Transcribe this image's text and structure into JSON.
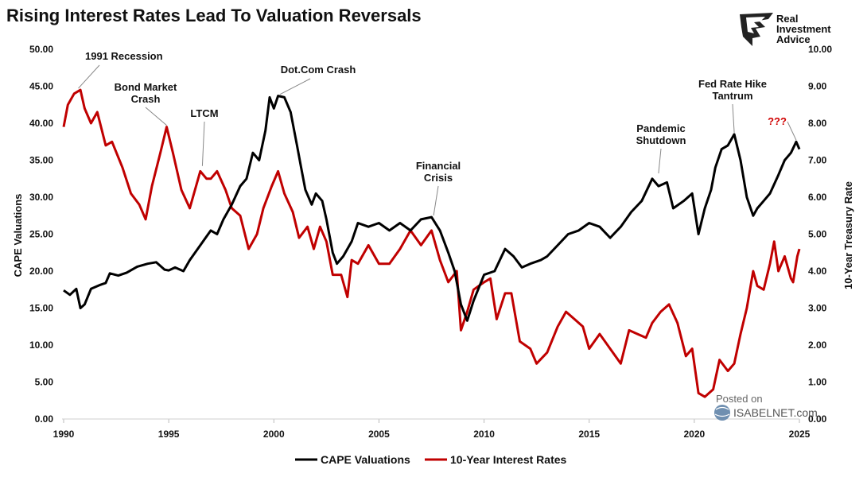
{
  "brand": {
    "line1": "Real",
    "line2": "Investment",
    "line3": "Advice"
  },
  "watermark": {
    "line1": "Posted on",
    "line2": "ISABELNET.com"
  },
  "colors": {
    "cape": "#000000",
    "rates": "#c00000",
    "question": "#d00000"
  },
  "chart_data": {
    "type": "line",
    "title": "Rising Interest Rates Lead To Valuation Reversals",
    "ylabel": "CAPE Valuations",
    "y2label": "10-Year Treasury Rate",
    "xlim": [
      1990,
      2025
    ],
    "ylim": [
      0,
      50
    ],
    "y2lim": [
      0,
      10
    ],
    "x_ticks": [
      "1990",
      "1995",
      "2000",
      "2005",
      "2010",
      "2015",
      "2020",
      "2025"
    ],
    "y_ticks": [
      "0.00",
      "5.00",
      "10.00",
      "15.00",
      "20.00",
      "25.00",
      "30.00",
      "35.00",
      "40.00",
      "45.00",
      "50.00"
    ],
    "y2_ticks": [
      "0.00",
      "1.00",
      "2.00",
      "3.00",
      "4.00",
      "5.00",
      "6.00",
      "7.00",
      "8.00",
      "9.00",
      "10.00"
    ],
    "legend": [
      "CAPE Valuations",
      "10-Year Interest Rates"
    ],
    "legend_position": "bottom-center",
    "series": [
      {
        "name": "CAPE Valuations",
        "axis": "left",
        "points": [
          [
            1990.0,
            17.4
          ],
          [
            1990.3,
            16.8
          ],
          [
            1990.6,
            17.6
          ],
          [
            1990.8,
            15.0
          ],
          [
            1991.0,
            15.5
          ],
          [
            1991.3,
            17.6
          ],
          [
            1991.7,
            18.1
          ],
          [
            1992.0,
            18.4
          ],
          [
            1992.2,
            19.7
          ],
          [
            1992.6,
            19.4
          ],
          [
            1993.0,
            19.8
          ],
          [
            1993.5,
            20.6
          ],
          [
            1994.0,
            21.0
          ],
          [
            1994.4,
            21.2
          ],
          [
            1994.8,
            20.2
          ],
          [
            1995.0,
            20.1
          ],
          [
            1995.3,
            20.5
          ],
          [
            1995.7,
            20.0
          ],
          [
            1996.0,
            21.5
          ],
          [
            1996.5,
            23.5
          ],
          [
            1997.0,
            25.5
          ],
          [
            1997.3,
            25.0
          ],
          [
            1997.6,
            27.0
          ],
          [
            1998.0,
            29.0
          ],
          [
            1998.4,
            31.5
          ],
          [
            1998.7,
            32.5
          ],
          [
            1999.0,
            36.0
          ],
          [
            1999.3,
            35.0
          ],
          [
            1999.6,
            39.0
          ],
          [
            1999.8,
            43.5
          ],
          [
            2000.0,
            42.0
          ],
          [
            2000.2,
            43.7
          ],
          [
            2000.5,
            43.5
          ],
          [
            2000.8,
            41.5
          ],
          [
            2001.1,
            37.0
          ],
          [
            2001.3,
            34.0
          ],
          [
            2001.5,
            31.0
          ],
          [
            2001.8,
            29.0
          ],
          [
            2002.0,
            30.5
          ],
          [
            2002.3,
            29.5
          ],
          [
            2002.5,
            27.0
          ],
          [
            2002.8,
            22.5
          ],
          [
            2003.0,
            21.0
          ],
          [
            2003.3,
            22.0
          ],
          [
            2003.7,
            24.0
          ],
          [
            2004.0,
            26.5
          ],
          [
            2004.5,
            26.0
          ],
          [
            2005.0,
            26.5
          ],
          [
            2005.5,
            25.5
          ],
          [
            2006.0,
            26.5
          ],
          [
            2006.5,
            25.5
          ],
          [
            2007.0,
            27.0
          ],
          [
            2007.5,
            27.3
          ],
          [
            2007.9,
            25.5
          ],
          [
            2008.3,
            22.5
          ],
          [
            2008.6,
            20.0
          ],
          [
            2008.9,
            15.5
          ],
          [
            2009.2,
            13.3
          ],
          [
            2009.5,
            16.0
          ],
          [
            2010.0,
            19.5
          ],
          [
            2010.5,
            20.0
          ],
          [
            2011.0,
            23.0
          ],
          [
            2011.4,
            22.0
          ],
          [
            2011.8,
            20.5
          ],
          [
            2012.2,
            21.0
          ],
          [
            2012.7,
            21.5
          ],
          [
            2013.0,
            22.0
          ],
          [
            2013.5,
            23.5
          ],
          [
            2014.0,
            25.0
          ],
          [
            2014.5,
            25.5
          ],
          [
            2015.0,
            26.5
          ],
          [
            2015.5,
            26.0
          ],
          [
            2016.0,
            24.5
          ],
          [
            2016.5,
            26.0
          ],
          [
            2017.0,
            28.0
          ],
          [
            2017.5,
            29.5
          ],
          [
            2018.0,
            32.5
          ],
          [
            2018.3,
            31.5
          ],
          [
            2018.7,
            32.0
          ],
          [
            2019.0,
            28.5
          ],
          [
            2019.5,
            29.5
          ],
          [
            2019.9,
            30.5
          ],
          [
            2020.2,
            25.0
          ],
          [
            2020.5,
            28.5
          ],
          [
            2020.8,
            31.0
          ],
          [
            2021.0,
            34.0
          ],
          [
            2021.3,
            36.5
          ],
          [
            2021.6,
            37.0
          ],
          [
            2021.9,
            38.5
          ],
          [
            2022.2,
            35.0
          ],
          [
            2022.5,
            30.0
          ],
          [
            2022.8,
            27.5
          ],
          [
            2023.0,
            28.5
          ],
          [
            2023.3,
            29.5
          ],
          [
            2023.6,
            30.5
          ],
          [
            2024.0,
            33.0
          ],
          [
            2024.3,
            35.0
          ],
          [
            2024.6,
            36.0
          ],
          [
            2024.85,
            37.5
          ],
          [
            2025.0,
            36.5
          ]
        ]
      },
      {
        "name": "10-Year Interest Rates",
        "axis": "right",
        "points": [
          [
            1990.0,
            7.9
          ],
          [
            1990.2,
            8.5
          ],
          [
            1990.5,
            8.8
          ],
          [
            1990.8,
            8.9
          ],
          [
            1991.0,
            8.4
          ],
          [
            1991.3,
            8.0
          ],
          [
            1991.6,
            8.3
          ],
          [
            1992.0,
            7.4
          ],
          [
            1992.3,
            7.5
          ],
          [
            1992.8,
            6.8
          ],
          [
            1993.2,
            6.1
          ],
          [
            1993.6,
            5.8
          ],
          [
            1993.9,
            5.4
          ],
          [
            1994.2,
            6.3
          ],
          [
            1994.6,
            7.2
          ],
          [
            1994.9,
            7.9
          ],
          [
            1995.2,
            7.2
          ],
          [
            1995.6,
            6.2
          ],
          [
            1996.0,
            5.7
          ],
          [
            1996.5,
            6.7
          ],
          [
            1996.8,
            6.5
          ],
          [
            1997.0,
            6.5
          ],
          [
            1997.3,
            6.7
          ],
          [
            1997.7,
            6.2
          ],
          [
            1998.0,
            5.7
          ],
          [
            1998.4,
            5.5
          ],
          [
            1998.8,
            4.6
          ],
          [
            1999.2,
            5.0
          ],
          [
            1999.5,
            5.7
          ],
          [
            1999.9,
            6.3
          ],
          [
            2000.2,
            6.7
          ],
          [
            2000.5,
            6.1
          ],
          [
            2000.9,
            5.6
          ],
          [
            2001.2,
            4.9
          ],
          [
            2001.6,
            5.2
          ],
          [
            2001.9,
            4.6
          ],
          [
            2002.2,
            5.2
          ],
          [
            2002.5,
            4.8
          ],
          [
            2002.8,
            3.9
          ],
          [
            2003.2,
            3.9
          ],
          [
            2003.5,
            3.3
          ],
          [
            2003.7,
            4.3
          ],
          [
            2004.0,
            4.2
          ],
          [
            2004.5,
            4.7
          ],
          [
            2005.0,
            4.2
          ],
          [
            2005.5,
            4.2
          ],
          [
            2006.0,
            4.6
          ],
          [
            2006.5,
            5.1
          ],
          [
            2007.0,
            4.7
          ],
          [
            2007.5,
            5.1
          ],
          [
            2007.9,
            4.3
          ],
          [
            2008.3,
            3.7
          ],
          [
            2008.7,
            4.0
          ],
          [
            2008.9,
            2.4
          ],
          [
            2009.2,
            2.9
          ],
          [
            2009.5,
            3.5
          ],
          [
            2010.0,
            3.7
          ],
          [
            2010.3,
            3.8
          ],
          [
            2010.6,
            2.7
          ],
          [
            2011.0,
            3.4
          ],
          [
            2011.3,
            3.4
          ],
          [
            2011.7,
            2.1
          ],
          [
            2012.2,
            1.9
          ],
          [
            2012.5,
            1.5
          ],
          [
            2013.0,
            1.8
          ],
          [
            2013.5,
            2.5
          ],
          [
            2013.9,
            2.9
          ],
          [
            2014.3,
            2.7
          ],
          [
            2014.7,
            2.5
          ],
          [
            2015.0,
            1.9
          ],
          [
            2015.5,
            2.3
          ],
          [
            2016.0,
            1.9
          ],
          [
            2016.5,
            1.5
          ],
          [
            2016.9,
            2.4
          ],
          [
            2017.3,
            2.3
          ],
          [
            2017.7,
            2.2
          ],
          [
            2018.0,
            2.6
          ],
          [
            2018.4,
            2.9
          ],
          [
            2018.8,
            3.1
          ],
          [
            2019.2,
            2.6
          ],
          [
            2019.6,
            1.7
          ],
          [
            2019.9,
            1.9
          ],
          [
            2020.2,
            0.7
          ],
          [
            2020.5,
            0.6
          ],
          [
            2020.9,
            0.8
          ],
          [
            2021.2,
            1.6
          ],
          [
            2021.6,
            1.3
          ],
          [
            2021.9,
            1.5
          ],
          [
            2022.2,
            2.3
          ],
          [
            2022.5,
            3.0
          ],
          [
            2022.8,
            4.0
          ],
          [
            2023.0,
            3.6
          ],
          [
            2023.3,
            3.5
          ],
          [
            2023.6,
            4.2
          ],
          [
            2023.8,
            4.8
          ],
          [
            2024.0,
            4.0
          ],
          [
            2024.3,
            4.4
          ],
          [
            2024.6,
            3.8
          ],
          [
            2024.7,
            3.7
          ],
          [
            2024.9,
            4.4
          ],
          [
            2025.0,
            4.6
          ]
        ]
      }
    ],
    "annotations": [
      {
        "text": "1991 Recession",
        "x": 1990.7,
        "y": 8.9,
        "axis": "right"
      },
      {
        "text": "Bond Market Crash",
        "x": 1994.9,
        "y": 7.9,
        "axis": "right"
      },
      {
        "text": "LTCM",
        "x": 1996.6,
        "y": 6.8,
        "axis": "right"
      },
      {
        "text": "Dot.Com Crash",
        "x": 2000.3,
        "y": 43.7,
        "axis": "left"
      },
      {
        "text": "Financial Crisis",
        "x": 2007.6,
        "y": 27.3,
        "axis": "left"
      },
      {
        "text": "Pandemic Shutdown",
        "x": 2018.3,
        "y": 33.0,
        "axis": "left"
      },
      {
        "text": "Fed Rate Hike Tantrum",
        "x": 2021.9,
        "y": 38.5,
        "axis": "left"
      },
      {
        "text": "???",
        "x": 2024.85,
        "y": 37.5,
        "axis": "left"
      }
    ]
  }
}
